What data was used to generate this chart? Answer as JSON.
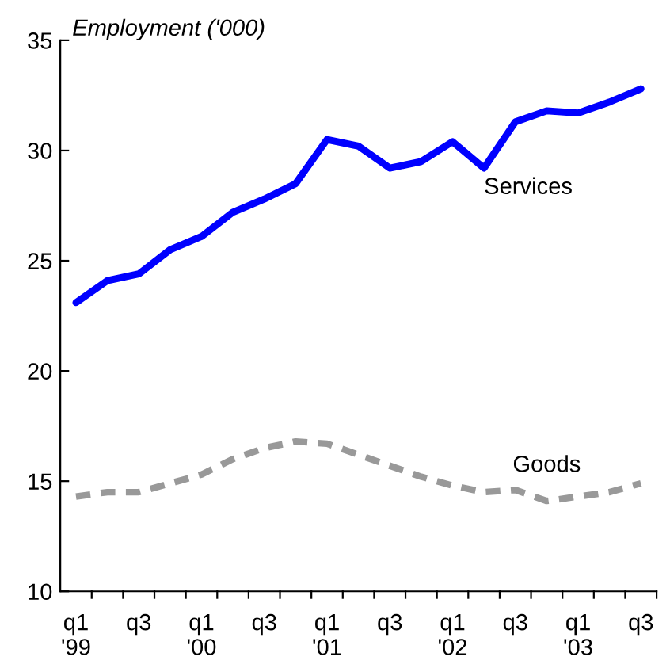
{
  "chart_data": {
    "type": "line",
    "title": "Employment ('000)",
    "categories": [
      "q1\n'99",
      null,
      "q3",
      null,
      "q1\n'00",
      null,
      "q3",
      null,
      "q1\n'01",
      null,
      "q3",
      null,
      "q1\n'02",
      null,
      "q3",
      null,
      "q1\n'03",
      null,
      "q3"
    ],
    "series": [
      {
        "name": "Services",
        "color": "#0000ff",
        "line_style": "solid",
        "values": [
          23.1,
          24.1,
          24.4,
          25.5,
          26.1,
          27.2,
          27.8,
          28.5,
          30.5,
          30.2,
          29.2,
          29.5,
          30.4,
          29.2,
          31.3,
          31.8,
          31.7,
          32.2,
          32.8
        ]
      },
      {
        "name": "Goods",
        "color": "#999999",
        "line_style": "dashed",
        "values": [
          14.3,
          14.5,
          14.5,
          14.9,
          15.3,
          16.0,
          16.5,
          16.8,
          16.7,
          16.2,
          15.7,
          15.2,
          14.8,
          14.5,
          14.6,
          14.1,
          14.3,
          14.5,
          14.9
        ]
      }
    ],
    "ylim": [
      10,
      35
    ],
    "yticks": [
      10,
      15,
      20,
      25,
      30,
      35
    ],
    "grid": false,
    "legend": false,
    "marker": "none"
  }
}
